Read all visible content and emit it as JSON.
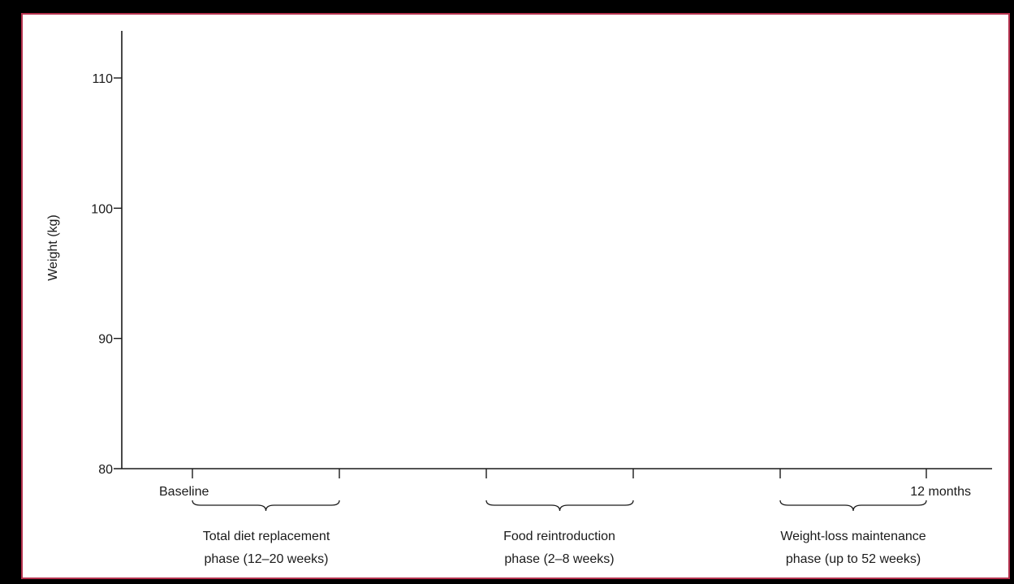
{
  "chart_data": {
    "type": "line",
    "title": "",
    "ylabel": "Weight (kg)",
    "xlabel": "",
    "ylim": [
      80,
      113.5
    ],
    "yticks": [
      80,
      90,
      100,
      110
    ],
    "x_labels": [
      {
        "label": "Baseline",
        "anchor": "start"
      },
      {
        "label": "12 months",
        "anchor": "end"
      }
    ],
    "phases": [
      {
        "line1": "Total diet replacement",
        "line2": "phase (12–20 weeks)"
      },
      {
        "line1": "Food reintroduction",
        "line2": "phase (2–8 weeks)"
      },
      {
        "line1": "Weight-loss maintenance",
        "line2": "phase (up to 52 weeks)"
      }
    ],
    "series": [],
    "grid": false,
    "colors": {
      "frame": "#b5324e",
      "axis": "#1a1a1a"
    }
  }
}
